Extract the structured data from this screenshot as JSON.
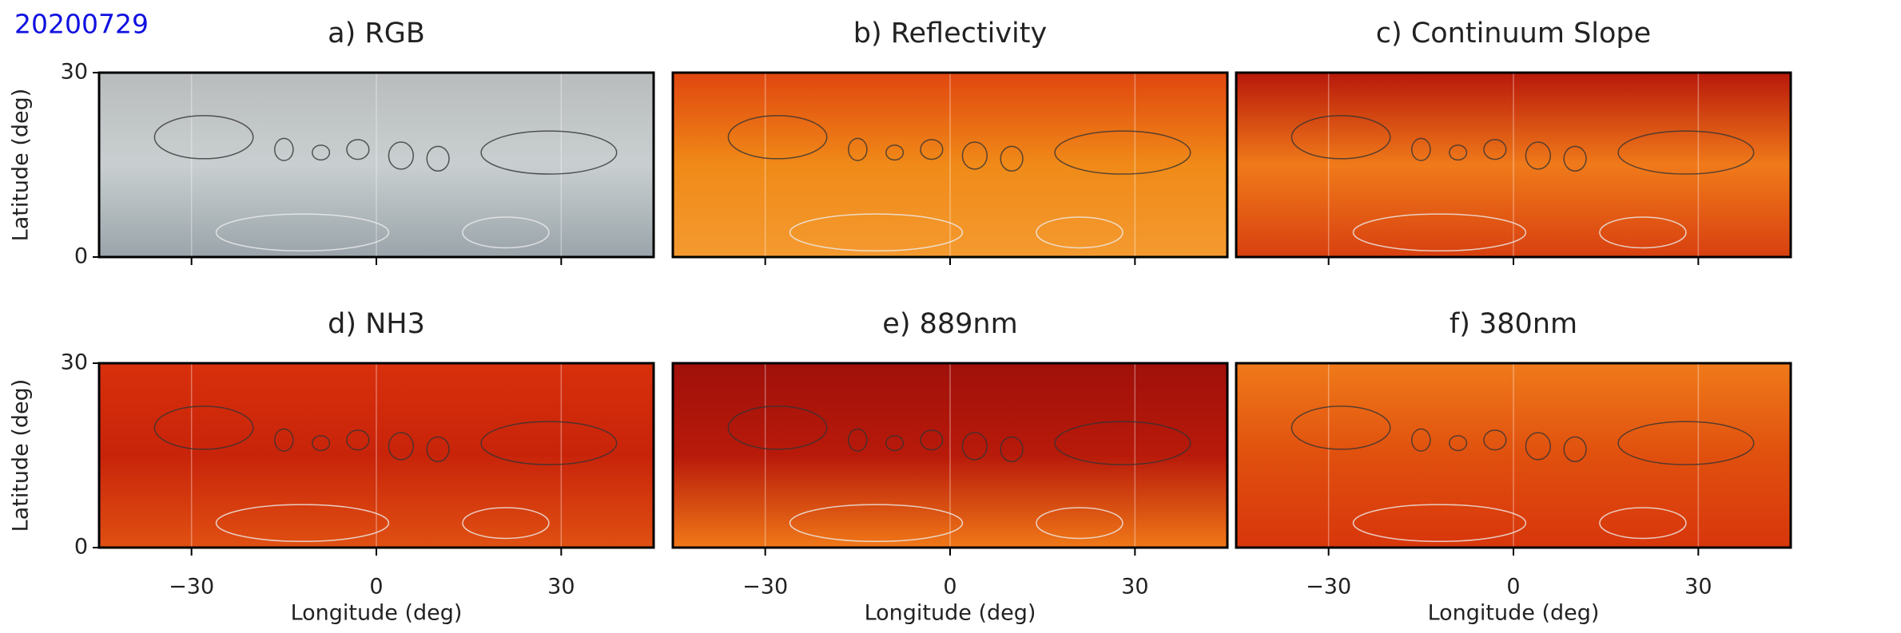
{
  "label": "20200729",
  "chart_data": [
    {
      "type": "image",
      "title": "a) RGB",
      "colors": [
        "#b9bcbd",
        "#c9cfd0",
        "#9aa4aa"
      ],
      "xlim": [
        -45,
        45
      ],
      "ylim": [
        0,
        30
      ],
      "xticks": [
        -30,
        0,
        30
      ],
      "yticks": [
        0,
        30
      ],
      "ylabel": "Latitude (deg)"
    },
    {
      "type": "image",
      "title": "b) Reflectivity",
      "colors": [
        "#e0460f",
        "#f08a18",
        "#f49a30"
      ],
      "xlim": [
        -45,
        45
      ],
      "ylim": [
        0,
        30
      ],
      "xticks": [
        -30,
        0,
        30
      ]
    },
    {
      "type": "image",
      "title": "c) Continuum Slope",
      "colors": [
        "#b8180a",
        "#f07a1a",
        "#d84010"
      ],
      "xlim": [
        -45,
        45
      ],
      "ylim": [
        0,
        30
      ],
      "xticks": [
        -30,
        0,
        30
      ]
    },
    {
      "type": "image",
      "title": "d) NH3",
      "colors": [
        "#d8300c",
        "#c8240a",
        "#e05012"
      ],
      "xlim": [
        -45,
        45
      ],
      "ylim": [
        0,
        30
      ],
      "xticks": [
        {
          "value": -30,
          "label": "−30"
        },
        0,
        30
      ],
      "yticks": [
        0,
        30
      ],
      "xlabel": "Longitude (deg)",
      "ylabel": "Latitude (deg)"
    },
    {
      "type": "image",
      "title": "e) 889nm",
      "colors": [
        "#a0100a",
        "#b81a0a",
        "#f07818"
      ],
      "xlim": [
        -45,
        45
      ],
      "ylim": [
        0,
        30
      ],
      "xticks": [
        {
          "value": -30,
          "label": "−30"
        },
        0,
        30
      ],
      "xlabel": "Longitude (deg)"
    },
    {
      "type": "image",
      "title": "f) 380nm",
      "colors": [
        "#f07a1a",
        "#e0500e",
        "#d8360c"
      ],
      "xlim": [
        -45,
        45
      ],
      "ylim": [
        0,
        30
      ],
      "xticks": [
        {
          "value": -30,
          "label": "−30"
        },
        0,
        30
      ],
      "xlabel": "Longitude (deg)"
    }
  ]
}
